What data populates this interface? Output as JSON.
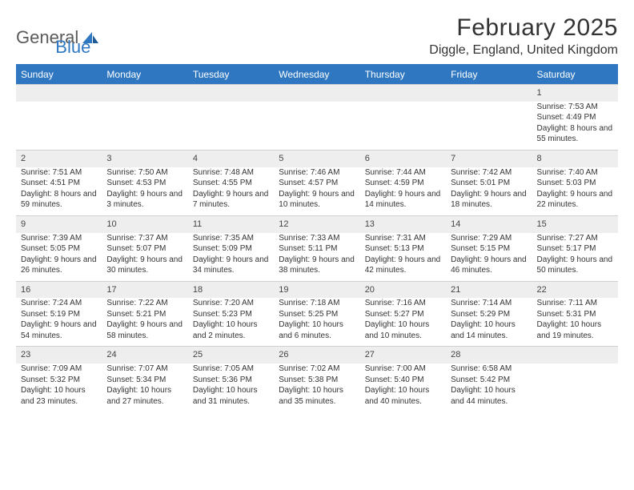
{
  "logo": {
    "general": "General",
    "blue": "Blue"
  },
  "header": {
    "month_title": "February 2025",
    "location": "Diggle, England, United Kingdom"
  },
  "colors": {
    "accent": "#2f78c1",
    "header_text": "#ffffff",
    "daynum_bg": "#eeeeee",
    "text": "#333333",
    "logo_gray": "#5a5a5a"
  },
  "weekdays": [
    "Sunday",
    "Monday",
    "Tuesday",
    "Wednesday",
    "Thursday",
    "Friday",
    "Saturday"
  ],
  "weeks": [
    [
      null,
      null,
      null,
      null,
      null,
      null,
      {
        "n": "1",
        "sr": "Sunrise: 7:53 AM",
        "ss": "Sunset: 4:49 PM",
        "dl": "Daylight: 8 hours and 55 minutes."
      }
    ],
    [
      {
        "n": "2",
        "sr": "Sunrise: 7:51 AM",
        "ss": "Sunset: 4:51 PM",
        "dl": "Daylight: 8 hours and 59 minutes."
      },
      {
        "n": "3",
        "sr": "Sunrise: 7:50 AM",
        "ss": "Sunset: 4:53 PM",
        "dl": "Daylight: 9 hours and 3 minutes."
      },
      {
        "n": "4",
        "sr": "Sunrise: 7:48 AM",
        "ss": "Sunset: 4:55 PM",
        "dl": "Daylight: 9 hours and 7 minutes."
      },
      {
        "n": "5",
        "sr": "Sunrise: 7:46 AM",
        "ss": "Sunset: 4:57 PM",
        "dl": "Daylight: 9 hours and 10 minutes."
      },
      {
        "n": "6",
        "sr": "Sunrise: 7:44 AM",
        "ss": "Sunset: 4:59 PM",
        "dl": "Daylight: 9 hours and 14 minutes."
      },
      {
        "n": "7",
        "sr": "Sunrise: 7:42 AM",
        "ss": "Sunset: 5:01 PM",
        "dl": "Daylight: 9 hours and 18 minutes."
      },
      {
        "n": "8",
        "sr": "Sunrise: 7:40 AM",
        "ss": "Sunset: 5:03 PM",
        "dl": "Daylight: 9 hours and 22 minutes."
      }
    ],
    [
      {
        "n": "9",
        "sr": "Sunrise: 7:39 AM",
        "ss": "Sunset: 5:05 PM",
        "dl": "Daylight: 9 hours and 26 minutes."
      },
      {
        "n": "10",
        "sr": "Sunrise: 7:37 AM",
        "ss": "Sunset: 5:07 PM",
        "dl": "Daylight: 9 hours and 30 minutes."
      },
      {
        "n": "11",
        "sr": "Sunrise: 7:35 AM",
        "ss": "Sunset: 5:09 PM",
        "dl": "Daylight: 9 hours and 34 minutes."
      },
      {
        "n": "12",
        "sr": "Sunrise: 7:33 AM",
        "ss": "Sunset: 5:11 PM",
        "dl": "Daylight: 9 hours and 38 minutes."
      },
      {
        "n": "13",
        "sr": "Sunrise: 7:31 AM",
        "ss": "Sunset: 5:13 PM",
        "dl": "Daylight: 9 hours and 42 minutes."
      },
      {
        "n": "14",
        "sr": "Sunrise: 7:29 AM",
        "ss": "Sunset: 5:15 PM",
        "dl": "Daylight: 9 hours and 46 minutes."
      },
      {
        "n": "15",
        "sr": "Sunrise: 7:27 AM",
        "ss": "Sunset: 5:17 PM",
        "dl": "Daylight: 9 hours and 50 minutes."
      }
    ],
    [
      {
        "n": "16",
        "sr": "Sunrise: 7:24 AM",
        "ss": "Sunset: 5:19 PM",
        "dl": "Daylight: 9 hours and 54 minutes."
      },
      {
        "n": "17",
        "sr": "Sunrise: 7:22 AM",
        "ss": "Sunset: 5:21 PM",
        "dl": "Daylight: 9 hours and 58 minutes."
      },
      {
        "n": "18",
        "sr": "Sunrise: 7:20 AM",
        "ss": "Sunset: 5:23 PM",
        "dl": "Daylight: 10 hours and 2 minutes."
      },
      {
        "n": "19",
        "sr": "Sunrise: 7:18 AM",
        "ss": "Sunset: 5:25 PM",
        "dl": "Daylight: 10 hours and 6 minutes."
      },
      {
        "n": "20",
        "sr": "Sunrise: 7:16 AM",
        "ss": "Sunset: 5:27 PM",
        "dl": "Daylight: 10 hours and 10 minutes."
      },
      {
        "n": "21",
        "sr": "Sunrise: 7:14 AM",
        "ss": "Sunset: 5:29 PM",
        "dl": "Daylight: 10 hours and 14 minutes."
      },
      {
        "n": "22",
        "sr": "Sunrise: 7:11 AM",
        "ss": "Sunset: 5:31 PM",
        "dl": "Daylight: 10 hours and 19 minutes."
      }
    ],
    [
      {
        "n": "23",
        "sr": "Sunrise: 7:09 AM",
        "ss": "Sunset: 5:32 PM",
        "dl": "Daylight: 10 hours and 23 minutes."
      },
      {
        "n": "24",
        "sr": "Sunrise: 7:07 AM",
        "ss": "Sunset: 5:34 PM",
        "dl": "Daylight: 10 hours and 27 minutes."
      },
      {
        "n": "25",
        "sr": "Sunrise: 7:05 AM",
        "ss": "Sunset: 5:36 PM",
        "dl": "Daylight: 10 hours and 31 minutes."
      },
      {
        "n": "26",
        "sr": "Sunrise: 7:02 AM",
        "ss": "Sunset: 5:38 PM",
        "dl": "Daylight: 10 hours and 35 minutes."
      },
      {
        "n": "27",
        "sr": "Sunrise: 7:00 AM",
        "ss": "Sunset: 5:40 PM",
        "dl": "Daylight: 10 hours and 40 minutes."
      },
      {
        "n": "28",
        "sr": "Sunrise: 6:58 AM",
        "ss": "Sunset: 5:42 PM",
        "dl": "Daylight: 10 hours and 44 minutes."
      },
      null
    ]
  ]
}
